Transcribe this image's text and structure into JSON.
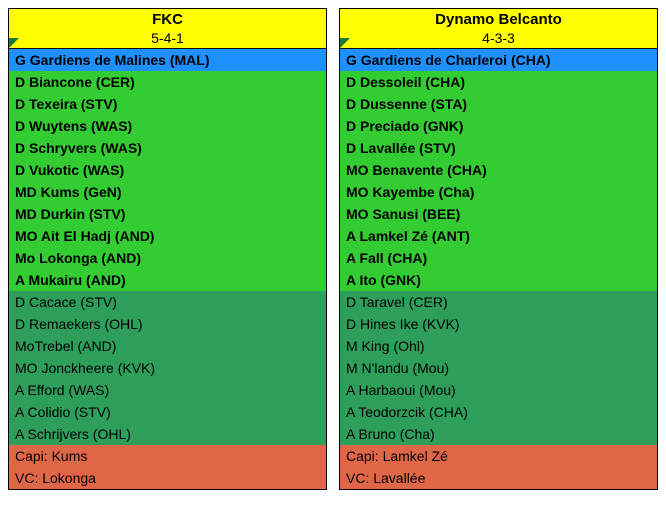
{
  "colors": {
    "header_bg": "#ffff00",
    "gk_bg": "#1e90ff",
    "starter_bg": "#33cc33",
    "sub_bg": "#2e9e5b",
    "captain_bg": "#e06648",
    "border": "#000000",
    "text": "#000000"
  },
  "left": {
    "name": "FKC",
    "formation": "5-4-1",
    "gk": "G Gardiens de Malines (MAL)",
    "starters": [
      "D Biancone (CER)",
      "D Texeira (STV)",
      "D Wuytens (WAS)",
      "D Schryvers (WAS)",
      "D Vukotic (WAS)",
      "MD Kums (GeN)",
      "MD Durkin (STV)",
      "MO Ait El Hadj (AND)",
      "Mo Lokonga (AND)",
      "A Mukairu (AND)"
    ],
    "subs": [
      "D Cacace (STV)",
      "D Remaekers (OHL)",
      "MoTrebel (AND)",
      "MO Jonckheere (KVK)",
      "A Efford (WAS)",
      "A Colidio (STV)",
      "A Schrijvers (OHL)"
    ],
    "capi": "Capi: Kums",
    "vc": "VC: Lokonga"
  },
  "right": {
    "name": "Dynamo Belcanto",
    "formation": "4-3-3",
    "gk": "G Gardiens de Charleroi (CHA)",
    "starters": [
      "D Dessoleil (CHA)",
      "D Dussenne (STA)",
      "D Preciado (GNK)",
      "D Lavallée (STV)",
      "MO Benavente (CHA)",
      "MO Kayembe (Cha)",
      "MO Sanusi (BEE)",
      "A Lamkel Zé (ANT)",
      "A Fall (CHA)",
      "A Ito (GNK)"
    ],
    "subs": [
      "D Taravel (CER)",
      "D Hines Ike (KVK)",
      "M King (Ohl)",
      "M N'landu (Mou)",
      "A Harbaoui (Mou)",
      "A Teodorzcik (CHA)",
      "A Bruno (Cha)"
    ],
    "capi": "Capi: Lamkel Zé",
    "vc": "VC: Lavallée"
  }
}
